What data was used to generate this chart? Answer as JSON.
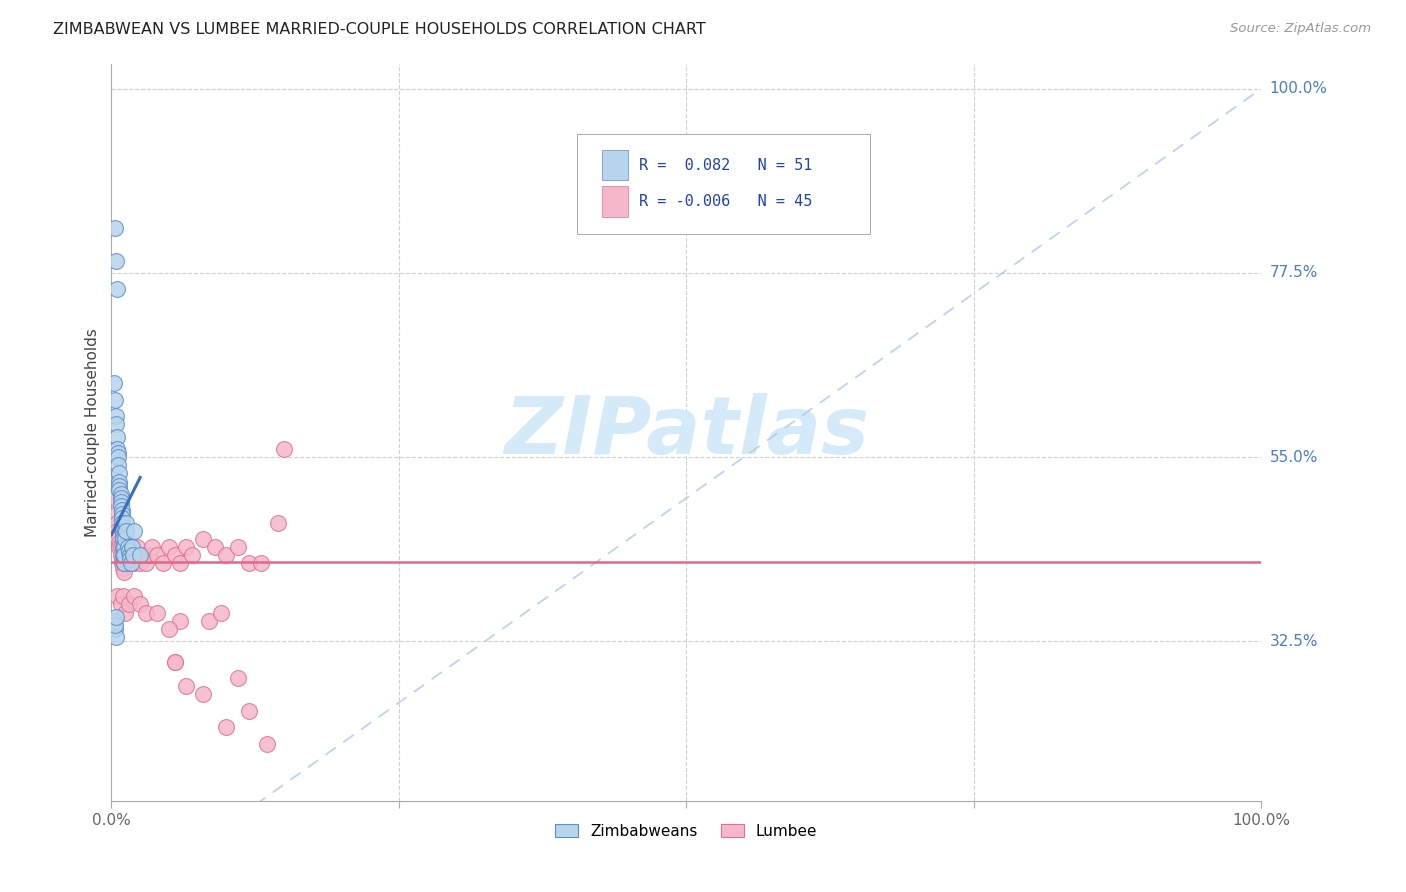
{
  "title": "ZIMBABWEAN VS LUMBEE MARRIED-COUPLE HOUSEHOLDS CORRELATION CHART",
  "source": "Source: ZipAtlas.com",
  "ylabel": "Married-couple Households",
  "xlim": [
    0.0,
    1.0
  ],
  "ylim": [
    0.13,
    1.03
  ],
  "ytick_labels_right": [
    "100.0%",
    "77.5%",
    "55.0%",
    "32.5%"
  ],
  "ytick_vals_right": [
    1.0,
    0.775,
    0.55,
    0.325
  ],
  "zimbabwean_R": 0.082,
  "zimbabwean_N": 51,
  "lumbee_R": -0.006,
  "lumbee_N": 45,
  "blue_fill": "#b8d4ed",
  "blue_edge": "#5b8ec4",
  "blue_line": "#3a6fbd",
  "blue_dash": "#adc8e8",
  "pink_fill": "#f5b8cb",
  "pink_edge": "#e07090",
  "pink_line": "#e06888",
  "watermark_color": "#d5eaf8",
  "zim_x": [
    0.003,
    0.004,
    0.005,
    0.002,
    0.003,
    0.004,
    0.004,
    0.005,
    0.005,
    0.006,
    0.006,
    0.006,
    0.007,
    0.007,
    0.007,
    0.007,
    0.008,
    0.008,
    0.008,
    0.008,
    0.009,
    0.009,
    0.009,
    0.009,
    0.009,
    0.01,
    0.01,
    0.01,
    0.01,
    0.01,
    0.011,
    0.011,
    0.011,
    0.012,
    0.012,
    0.013,
    0.013,
    0.014,
    0.015,
    0.016,
    0.016,
    0.017,
    0.018,
    0.019,
    0.02,
    0.025,
    0.002,
    0.003,
    0.004,
    0.003,
    0.004
  ],
  "zim_y": [
    0.83,
    0.79,
    0.755,
    0.64,
    0.62,
    0.6,
    0.59,
    0.575,
    0.56,
    0.555,
    0.55,
    0.54,
    0.53,
    0.52,
    0.515,
    0.51,
    0.505,
    0.5,
    0.495,
    0.49,
    0.485,
    0.48,
    0.475,
    0.47,
    0.465,
    0.46,
    0.455,
    0.45,
    0.44,
    0.43,
    0.42,
    0.44,
    0.43,
    0.46,
    0.45,
    0.47,
    0.46,
    0.44,
    0.435,
    0.43,
    0.425,
    0.42,
    0.44,
    0.43,
    0.46,
    0.43,
    0.35,
    0.34,
    0.33,
    0.345,
    0.355
  ],
  "lum_x": [
    0.003,
    0.004,
    0.005,
    0.005,
    0.006,
    0.006,
    0.007,
    0.007,
    0.008,
    0.008,
    0.009,
    0.009,
    0.01,
    0.01,
    0.011,
    0.011,
    0.012,
    0.013,
    0.014,
    0.015,
    0.016,
    0.018,
    0.02,
    0.022,
    0.025,
    0.028,
    0.03,
    0.033,
    0.035,
    0.04,
    0.045,
    0.05,
    0.055,
    0.06,
    0.065,
    0.07,
    0.08,
    0.09,
    0.1,
    0.11,
    0.12,
    0.13,
    0.145,
    0.15,
    0.055
  ],
  "lum_y": [
    0.5,
    0.48,
    0.47,
    0.46,
    0.455,
    0.45,
    0.445,
    0.44,
    0.44,
    0.43,
    0.425,
    0.42,
    0.42,
    0.415,
    0.41,
    0.42,
    0.43,
    0.44,
    0.42,
    0.43,
    0.42,
    0.43,
    0.42,
    0.44,
    0.42,
    0.43,
    0.42,
    0.43,
    0.44,
    0.43,
    0.42,
    0.44,
    0.43,
    0.42,
    0.44,
    0.43,
    0.45,
    0.44,
    0.43,
    0.44,
    0.42,
    0.42,
    0.47,
    0.56,
    0.3
  ],
  "lum_scattered_x": [
    0.005,
    0.008,
    0.01,
    0.012,
    0.015,
    0.02,
    0.025,
    0.03,
    0.055,
    0.065,
    0.08,
    0.085,
    0.095,
    0.1,
    0.11,
    0.12,
    0.135,
    0.06,
    0.05,
    0.04
  ],
  "lum_scattered_y": [
    0.38,
    0.37,
    0.38,
    0.36,
    0.37,
    0.38,
    0.37,
    0.36,
    0.3,
    0.27,
    0.26,
    0.35,
    0.36,
    0.22,
    0.28,
    0.24,
    0.2,
    0.35,
    0.34,
    0.36
  ]
}
